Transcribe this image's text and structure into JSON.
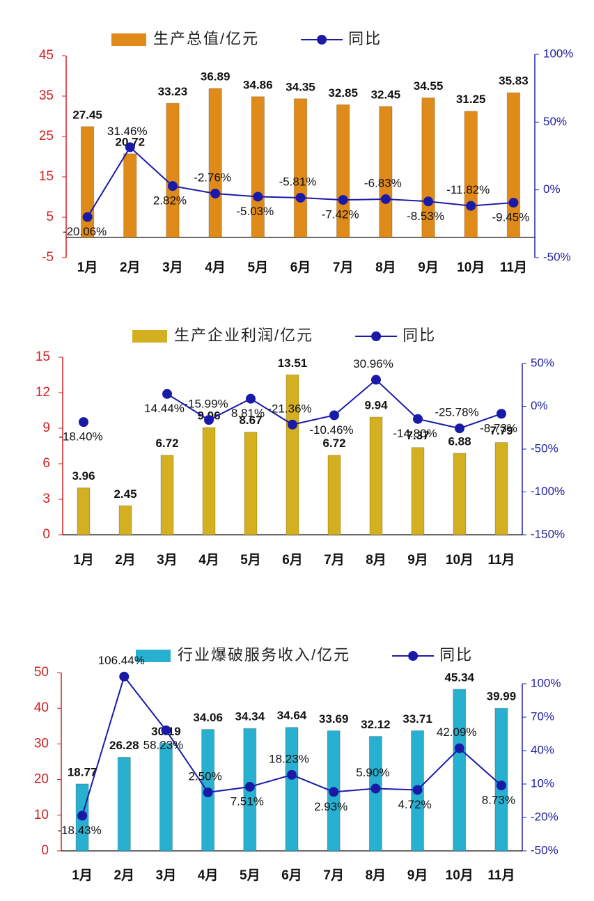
{
  "chart_data": [
    {
      "type": "bar",
      "categories": [
        "1月",
        "2月",
        "3月",
        "4月",
        "5月",
        "6月",
        "7月",
        "8月",
        "9月",
        "10月",
        "11月"
      ],
      "ylim": [
        -5,
        45
      ],
      "yticks": [
        -5,
        5,
        15,
        25,
        35,
        45
      ],
      "y2lim": [
        -50,
        100
      ],
      "y2ticks": [
        {
          "value": -50,
          "label": "-50%"
        },
        {
          "value": 0,
          "label": "0%"
        },
        {
          "value": 50,
          "label": "50%"
        },
        {
          "value": 100,
          "label": "100%"
        }
      ],
      "series": [
        {
          "name": "生产总值/亿元",
          "color": "#e08a1a",
          "values": [
            27.45,
            20.72,
            33.23,
            36.89,
            34.86,
            34.35,
            32.85,
            32.45,
            34.55,
            31.25,
            35.83
          ]
        },
        {
          "name": "同比",
          "type": "line",
          "axis": "y2",
          "color": "#1a1aa8",
          "values": [
            -20.06,
            31.46,
            2.82,
            -2.76,
            -5.03,
            -5.81,
            -7.42,
            -6.83,
            -8.53,
            -11.82,
            -9.45
          ],
          "value_labels": [
            "-20.06%",
            "31.46%",
            "2.82%",
            "-2.76%",
            "-5.03%",
            "-5.81%",
            "-7.42%",
            "-6.83%",
            "-8.53%",
            "-11.82%",
            "-9.45%"
          ]
        }
      ]
    },
    {
      "type": "bar",
      "categories": [
        "1月",
        "2月",
        "3月",
        "4月",
        "5月",
        "6月",
        "7月",
        "8月",
        "9月",
        "10月",
        "11月"
      ],
      "ylim": [
        0,
        15
      ],
      "yticks": [
        0,
        3,
        6,
        9,
        12,
        15
      ],
      "y2lim": [
        -150,
        50
      ],
      "y2ticks": [
        {
          "value": -150,
          "label": "-150%"
        },
        {
          "value": -100,
          "label": "-100%"
        },
        {
          "value": -50,
          "label": "-50%"
        },
        {
          "value": 0,
          "label": "0%"
        },
        {
          "value": 50,
          "label": "50%"
        }
      ],
      "series": [
        {
          "name": "生产企业利润/亿元",
          "color": "#d4b020",
          "values": [
            3.96,
            2.45,
            6.72,
            9.06,
            8.67,
            13.51,
            6.72,
            9.94,
            7.37,
            6.88,
            7.79
          ]
        },
        {
          "name": "同比",
          "type": "line",
          "axis": "y2",
          "color": "#1a1aa8",
          "values": [
            -18.4,
            null,
            14.44,
            -15.99,
            8.81,
            -21.36,
            -10.46,
            30.96,
            -14.8,
            -25.78,
            -8.73
          ],
          "value_labels": [
            "-18.40%",
            null,
            "14.44%",
            "-15.99%",
            "8.81%",
            "-21.36%",
            "-10.46%",
            "30.96%",
            "-14.80%",
            "-25.78%",
            "-8.73%"
          ]
        }
      ]
    },
    {
      "type": "bar",
      "categories": [
        "1月",
        "2月",
        "3月",
        "4月",
        "5月",
        "6月",
        "7月",
        "8月",
        "9月",
        "10月",
        "11月"
      ],
      "ylim": [
        0,
        50
      ],
      "yticks": [
        0,
        10,
        20,
        30,
        40,
        50
      ],
      "y2lim": [
        -50,
        100
      ],
      "y2ticks": [
        {
          "value": -50,
          "label": "-50%"
        },
        {
          "value": -20,
          "label": "-20%"
        },
        {
          "value": 10,
          "label": "10%"
        },
        {
          "value": 40,
          "label": "40%"
        },
        {
          "value": 70,
          "label": "70%"
        },
        {
          "value": 100,
          "label": "100%"
        }
      ],
      "series": [
        {
          "name": "行业爆破服务收入/亿元",
          "color": "#28b0d0",
          "values": [
            18.77,
            26.28,
            30.19,
            34.06,
            34.34,
            34.64,
            33.69,
            32.12,
            33.71,
            45.34,
            39.99
          ]
        },
        {
          "name": "同比",
          "type": "line",
          "axis": "y2",
          "color": "#1a1aa8",
          "values": [
            -18.43,
            106.44,
            58.23,
            2.5,
            7.51,
            18.23,
            2.93,
            5.9,
            4.72,
            42.09,
            8.73
          ],
          "value_labels": [
            "-18.43%",
            "106.44%",
            "58.23%",
            "2.50%",
            "7.51%",
            "18.23%",
            "2.93%",
            "5.90%",
            "4.72%",
            "42.09%",
            "8.73%"
          ]
        }
      ]
    }
  ]
}
